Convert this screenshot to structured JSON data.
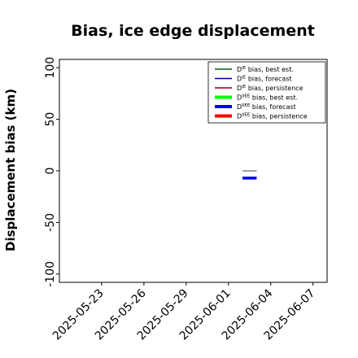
{
  "chart_data": {
    "type": "line",
    "title": "Bias, ice edge displacement",
    "xlabel": "",
    "ylabel": "Displacement bias (km)",
    "ylim": [
      -108,
      108
    ],
    "y_ticks": [
      -100,
      -50,
      0,
      50,
      100
    ],
    "x_ticks": [
      "2025-05-23",
      "2025-05-26",
      "2025-05-29",
      "2025-06-01",
      "2025-06-04",
      "2025-06-07"
    ],
    "x_highlight_tick": "2025-05-29",
    "x_highlight_color": "#228b22",
    "xlim": [
      "2025-05-20",
      "2025-06-08"
    ],
    "grid": false,
    "legend_position": "top-right",
    "series": [
      {
        "name": "D^IE bias, best est.",
        "legend_main": "D",
        "legend_sup": "IE",
        "legend_rest": " bias, best est.",
        "color": "#006400",
        "style": "thin",
        "x": [],
        "values": []
      },
      {
        "name": "D^IE bias, forecast",
        "legend_main": "D",
        "legend_sup": "IE",
        "legend_rest": " bias, forecast",
        "color": "#00008b",
        "style": "thin",
        "x": [],
        "values": []
      },
      {
        "name": "D^IE bias, persistence",
        "legend_main": "D",
        "legend_sup": "IE",
        "legend_rest": " bias, persistence",
        "color": "#8b0000",
        "style": "thin",
        "x": [],
        "values": []
      },
      {
        "name": "D^IIEE bias, best est.",
        "legend_main": "D",
        "legend_sup": "IIEE",
        "legend_rest": " bias, best est.",
        "color": "#00ff00",
        "style": "thick",
        "x": [],
        "values": []
      },
      {
        "name": "D^IIEE bias, forecast",
        "legend_main": "D",
        "legend_sup": "IIEE",
        "legend_rest": " bias, forecast",
        "color": "#0000ff",
        "style": "thick",
        "x": [
          "2025-06-02",
          "2025-06-03"
        ],
        "values": [
          -7,
          -7
        ]
      },
      {
        "name": "D^IIEE bias, persistence",
        "legend_main": "D",
        "legend_sup": "IIEE",
        "legend_rest": " bias, persistence",
        "color": "#ff0000",
        "style": "thick",
        "x": [],
        "values": []
      }
    ],
    "extra_marks": [
      {
        "kind": "hline",
        "x": [
          "2025-06-02",
          "2025-06-03"
        ],
        "value": 0,
        "color": "#808080"
      }
    ]
  }
}
